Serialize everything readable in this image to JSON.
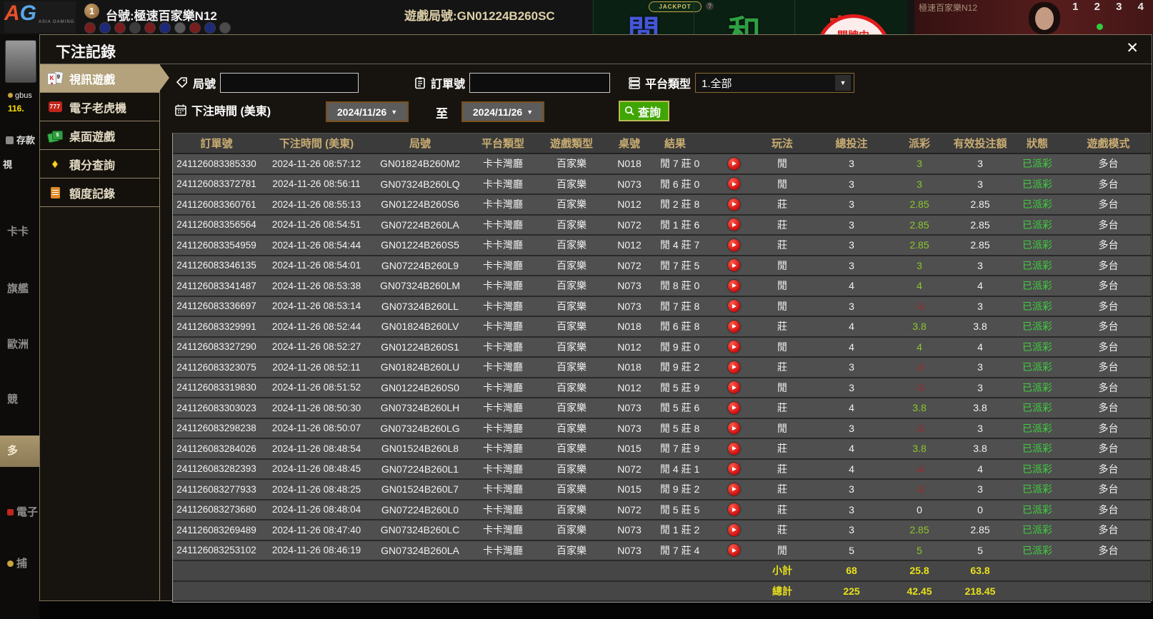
{
  "background": {
    "logo": {
      "a": "A",
      "g": "G",
      "sub": "ASIA GAMING"
    },
    "seat_number": "1",
    "table_label": "台號:極速百家樂N12",
    "round_label": "遊戲局號:GN01224B260SC",
    "bet_spots": [
      "閒",
      "和",
      "莊"
    ],
    "jackpot_label": "JACKPOT",
    "jackpot_help": "?",
    "status_badge": "開牌中",
    "video_title": "極速百家樂N12",
    "road_numbers": "1 2 3 4",
    "left_strip": {
      "username": "gbus",
      "balance": "116.",
      "deposit": "存款",
      "video_partial": "視",
      "nav_items": [
        "卡卡",
        "旗艦",
        "歐洲",
        "競",
        "多",
        "電子",
        "捕"
      ]
    }
  },
  "modal": {
    "title": "下注記錄",
    "close": "✕"
  },
  "sidebar": {
    "items": [
      {
        "label": "視訊遊戲",
        "icon": "cards-icon",
        "active": true
      },
      {
        "label": "電子老虎機",
        "icon": "slot-icon",
        "active": false
      },
      {
        "label": "桌面遊戲",
        "icon": "table-games-icon",
        "active": false
      },
      {
        "label": "積分查詢",
        "icon": "gem-icon",
        "active": false
      },
      {
        "label": "額度記錄",
        "icon": "document-icon",
        "active": false
      }
    ]
  },
  "filters": {
    "round_label": "局號",
    "round_value": "",
    "order_label": "訂單號",
    "order_value": "",
    "platform_label": "平台類型",
    "platform_value": "1.全部",
    "time_label": "下注時間 (美東)",
    "date_from": "2024/11/26",
    "to_label": "至",
    "date_to": "2024/11/26",
    "search_label": "查詢"
  },
  "table": {
    "headers": [
      "訂單號",
      "下注時間 (美東)",
      "局號",
      "平台類型",
      "遊戲類型",
      "桌號",
      "結果",
      "",
      "玩法",
      "總投注",
      "派彩",
      "有效投注額",
      "狀態",
      "遊戲模式"
    ],
    "rows": [
      {
        "order": "241126083385330",
        "time": "2024-11-26 08:57:12",
        "round": "GN01824B260M2",
        "platform": "卡卡灣廳",
        "game": "百家樂",
        "table": "N018",
        "result": "閒 7 莊 0",
        "play": "閒",
        "bet": "3",
        "payout": "3",
        "payout_class": "pos",
        "valid": "3",
        "status": "已派彩",
        "mode": "多台"
      },
      {
        "order": "241126083372781",
        "time": "2024-11-26 08:56:11",
        "round": "GN07324B260LQ",
        "platform": "卡卡灣廳",
        "game": "百家樂",
        "table": "N073",
        "result": "閒 6 莊 0",
        "play": "閒",
        "bet": "3",
        "payout": "3",
        "payout_class": "pos",
        "valid": "3",
        "status": "已派彩",
        "mode": "多台"
      },
      {
        "order": "241126083360761",
        "time": "2024-11-26 08:55:13",
        "round": "GN01224B260S6",
        "platform": "卡卡灣廳",
        "game": "百家樂",
        "table": "N012",
        "result": "閒 2 莊 8",
        "play": "莊",
        "bet": "3",
        "payout": "2.85",
        "payout_class": "pos",
        "valid": "2.85",
        "status": "已派彩",
        "mode": "多台"
      },
      {
        "order": "241126083356564",
        "time": "2024-11-26 08:54:51",
        "round": "GN07224B260LA",
        "platform": "卡卡灣廳",
        "game": "百家樂",
        "table": "N072",
        "result": "閒 1 莊 6",
        "play": "莊",
        "bet": "3",
        "payout": "2.85",
        "payout_class": "pos",
        "valid": "2.85",
        "status": "已派彩",
        "mode": "多台"
      },
      {
        "order": "241126083354959",
        "time": "2024-11-26 08:54:44",
        "round": "GN01224B260S5",
        "platform": "卡卡灣廳",
        "game": "百家樂",
        "table": "N012",
        "result": "閒 4 莊 7",
        "play": "莊",
        "bet": "3",
        "payout": "2.85",
        "payout_class": "pos",
        "valid": "2.85",
        "status": "已派彩",
        "mode": "多台"
      },
      {
        "order": "241126083346135",
        "time": "2024-11-26 08:54:01",
        "round": "GN07224B260L9",
        "platform": "卡卡灣廳",
        "game": "百家樂",
        "table": "N072",
        "result": "閒 7 莊 5",
        "play": "閒",
        "bet": "3",
        "payout": "3",
        "payout_class": "pos",
        "valid": "3",
        "status": "已派彩",
        "mode": "多台"
      },
      {
        "order": "241126083341487",
        "time": "2024-11-26 08:53:38",
        "round": "GN07324B260LM",
        "platform": "卡卡灣廳",
        "game": "百家樂",
        "table": "N073",
        "result": "閒 8 莊 0",
        "play": "閒",
        "bet": "4",
        "payout": "4",
        "payout_class": "pos",
        "valid": "4",
        "status": "已派彩",
        "mode": "多台"
      },
      {
        "order": "241126083336697",
        "time": "2024-11-26 08:53:14",
        "round": "GN07324B260LL",
        "platform": "卡卡灣廳",
        "game": "百家樂",
        "table": "N073",
        "result": "閒 7 莊 8",
        "play": "閒",
        "bet": "3",
        "payout": "-3",
        "payout_class": "neg",
        "valid": "3",
        "status": "已派彩",
        "mode": "多台"
      },
      {
        "order": "241126083329991",
        "time": "2024-11-26 08:52:44",
        "round": "GN01824B260LV",
        "platform": "卡卡灣廳",
        "game": "百家樂",
        "table": "N018",
        "result": "閒 6 莊 8",
        "play": "莊",
        "bet": "4",
        "payout": "3.8",
        "payout_class": "pos",
        "valid": "3.8",
        "status": "已派彩",
        "mode": "多台"
      },
      {
        "order": "241126083327290",
        "time": "2024-11-26 08:52:27",
        "round": "GN01224B260S1",
        "platform": "卡卡灣廳",
        "game": "百家樂",
        "table": "N012",
        "result": "閒 9 莊 0",
        "play": "閒",
        "bet": "4",
        "payout": "4",
        "payout_class": "pos",
        "valid": "4",
        "status": "已派彩",
        "mode": "多台"
      },
      {
        "order": "241126083323075",
        "time": "2024-11-26 08:52:11",
        "round": "GN01824B260LU",
        "platform": "卡卡灣廳",
        "game": "百家樂",
        "table": "N018",
        "result": "閒 9 莊 2",
        "play": "莊",
        "bet": "3",
        "payout": "-3",
        "payout_class": "neg",
        "valid": "3",
        "status": "已派彩",
        "mode": "多台"
      },
      {
        "order": "241126083319830",
        "time": "2024-11-26 08:51:52",
        "round": "GN01224B260S0",
        "platform": "卡卡灣廳",
        "game": "百家樂",
        "table": "N012",
        "result": "閒 5 莊 9",
        "play": "閒",
        "bet": "3",
        "payout": "-3",
        "payout_class": "neg",
        "valid": "3",
        "status": "已派彩",
        "mode": "多台"
      },
      {
        "order": "241126083303023",
        "time": "2024-11-26 08:50:30",
        "round": "GN07324B260LH",
        "platform": "卡卡灣廳",
        "game": "百家樂",
        "table": "N073",
        "result": "閒 5 莊 6",
        "play": "莊",
        "bet": "4",
        "payout": "3.8",
        "payout_class": "pos",
        "valid": "3.8",
        "status": "已派彩",
        "mode": "多台"
      },
      {
        "order": "241126083298238",
        "time": "2024-11-26 08:50:07",
        "round": "GN07324B260LG",
        "platform": "卡卡灣廳",
        "game": "百家樂",
        "table": "N073",
        "result": "閒 5 莊 8",
        "play": "閒",
        "bet": "3",
        "payout": "-3",
        "payout_class": "neg",
        "valid": "3",
        "status": "已派彩",
        "mode": "多台"
      },
      {
        "order": "241126083284026",
        "time": "2024-11-26 08:48:54",
        "round": "GN01524B260L8",
        "platform": "卡卡灣廳",
        "game": "百家樂",
        "table": "N015",
        "result": "閒 7 莊 9",
        "play": "莊",
        "bet": "4",
        "payout": "3.8",
        "payout_class": "pos",
        "valid": "3.8",
        "status": "已派彩",
        "mode": "多台"
      },
      {
        "order": "241126083282393",
        "time": "2024-11-26 08:48:45",
        "round": "GN07224B260L1",
        "platform": "卡卡灣廳",
        "game": "百家樂",
        "table": "N072",
        "result": "閒 4 莊 1",
        "play": "莊",
        "bet": "4",
        "payout": "-4",
        "payout_class": "neg",
        "valid": "4",
        "status": "已派彩",
        "mode": "多台"
      },
      {
        "order": "241126083277933",
        "time": "2024-11-26 08:48:25",
        "round": "GN01524B260L7",
        "platform": "卡卡灣廳",
        "game": "百家樂",
        "table": "N015",
        "result": "閒 9 莊 2",
        "play": "莊",
        "bet": "3",
        "payout": "-3",
        "payout_class": "neg",
        "valid": "3",
        "status": "已派彩",
        "mode": "多台"
      },
      {
        "order": "241126083273680",
        "time": "2024-11-26 08:48:04",
        "round": "GN07224B260L0",
        "platform": "卡卡灣廳",
        "game": "百家樂",
        "table": "N072",
        "result": "閒 5 莊 5",
        "play": "莊",
        "bet": "3",
        "payout": "0",
        "payout_class": "zero",
        "valid": "0",
        "status": "已派彩",
        "mode": "多台"
      },
      {
        "order": "241126083269489",
        "time": "2024-11-26 08:47:40",
        "round": "GN07324B260LC",
        "platform": "卡卡灣廳",
        "game": "百家樂",
        "table": "N073",
        "result": "閒 1 莊 2",
        "play": "莊",
        "bet": "3",
        "payout": "2.85",
        "payout_class": "pos",
        "valid": "2.85",
        "status": "已派彩",
        "mode": "多台"
      },
      {
        "order": "241126083253102",
        "time": "2024-11-26 08:46:19",
        "round": "GN07324B260LA",
        "platform": "卡卡灣廳",
        "game": "百家樂",
        "table": "N073",
        "result": "閒 7 莊 4",
        "play": "閒",
        "bet": "5",
        "payout": "5",
        "payout_class": "pos",
        "valid": "5",
        "status": "已派彩",
        "mode": "多台"
      }
    ],
    "subtotal": {
      "label": "小計",
      "bet": "68",
      "payout": "25.8",
      "valid": "63.8"
    },
    "total": {
      "label": "總計",
      "bet": "225",
      "payout": "42.45",
      "valid": "218.45"
    }
  },
  "colors": {
    "positive_payout": "#8cc72c",
    "negative_payout": "#a32626",
    "status_paid": "#3fd03f",
    "summary_yellow": "#e8e11a",
    "header_text": "#c9ad72",
    "active_tab": "#b3a27c",
    "search_green": "#3fa502"
  }
}
